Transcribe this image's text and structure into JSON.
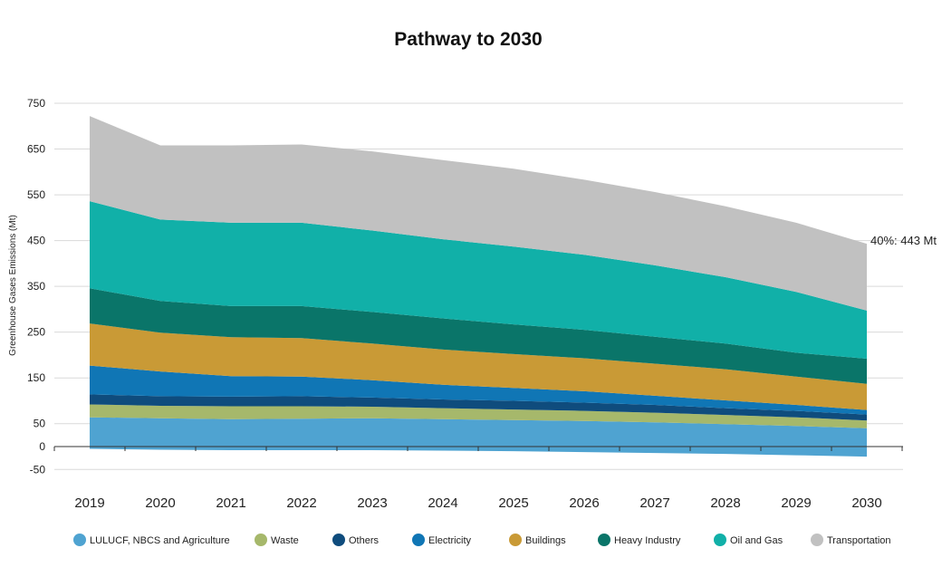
{
  "chart_data": {
    "type": "area",
    "stacked": true,
    "title": "Pathway to 2030",
    "xlabel": "",
    "ylabel": "Greenhouse Gases Emissions (Mt)",
    "categories": [
      "2019",
      "2020",
      "2021",
      "2022",
      "2023",
      "2024",
      "2025",
      "2026",
      "2027",
      "2028",
      "2029",
      "2030"
    ],
    "yticks": [
      750,
      650,
      550,
      450,
      350,
      250,
      150,
      50,
      0,
      -50
    ],
    "ylim": [
      -50,
      750
    ],
    "grid": true,
    "legend_position": "bottom",
    "annotation": {
      "text": "40%: 443 Mt",
      "x": "2030",
      "y": 443
    },
    "series": [
      {
        "name": "LULUCF, NBCS and Agriculture",
        "color": "#4fa3d1",
        "values": [
          64,
          62,
          60,
          61,
          62,
          60,
          58,
          56,
          53,
          49,
          45,
          40
        ]
      },
      {
        "name": "Waste",
        "color": "#a6b86b",
        "values": [
          28,
          27,
          28,
          27,
          25,
          24,
          23,
          22,
          21,
          20,
          19,
          17
        ]
      },
      {
        "name": "Others",
        "color": "#0f4c7d",
        "values": [
          22,
          21,
          21,
          22,
          20,
          19,
          19,
          18,
          17,
          15,
          14,
          13
        ]
      },
      {
        "name": "Electricity",
        "color": "#1076b5",
        "values": [
          63,
          54,
          45,
          43,
          38,
          32,
          28,
          25,
          20,
          17,
          13,
          10
        ]
      },
      {
        "name": "Buildings",
        "color": "#c99a36",
        "values": [
          92,
          85,
          85,
          84,
          80,
          77,
          74,
          72,
          70,
          68,
          62,
          57
        ]
      },
      {
        "name": "Heavy Industry",
        "color": "#0a7569",
        "values": [
          77,
          69,
          68,
          70,
          69,
          68,
          65,
          62,
          59,
          56,
          52,
          55
        ]
      },
      {
        "name": "Oil and Gas",
        "color": "#11b0a8",
        "values": [
          190,
          178,
          182,
          182,
          178,
          173,
          170,
          164,
          156,
          145,
          133,
          105
        ]
      },
      {
        "name": "Transportation",
        "color": "#c1c1c1",
        "values": [
          186,
          162,
          169,
          171,
          173,
          173,
          170,
          164,
          160,
          155,
          151,
          146
        ]
      }
    ],
    "negative_series": {
      "name": "LULUCF, NBCS and Agriculture",
      "color": "#4fa3d1",
      "values": [
        -5,
        -7,
        -8,
        -8,
        -8,
        -9,
        -10,
        -12,
        -14,
        -16,
        -19,
        -22
      ]
    }
  }
}
